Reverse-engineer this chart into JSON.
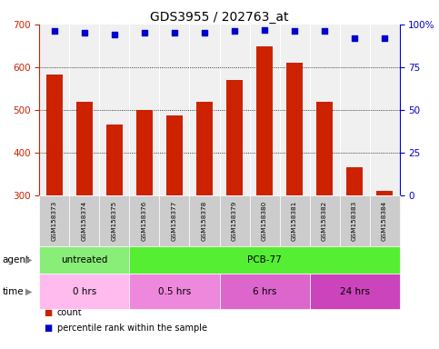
{
  "title": "GDS3955 / 202763_at",
  "samples": [
    "GSM158373",
    "GSM158374",
    "GSM158375",
    "GSM158376",
    "GSM158377",
    "GSM158378",
    "GSM158379",
    "GSM158380",
    "GSM158381",
    "GSM158382",
    "GSM158383",
    "GSM158384"
  ],
  "counts": [
    583,
    518,
    465,
    500,
    488,
    518,
    570,
    648,
    610,
    520,
    365,
    310
  ],
  "percentiles": [
    96,
    95,
    94,
    95,
    95,
    95,
    96,
    97,
    96,
    96,
    92,
    92
  ],
  "bar_color": "#cc2200",
  "dot_color": "#0000cc",
  "ylim_left": [
    300,
    700
  ],
  "ylim_right": [
    0,
    100
  ],
  "yticks_left": [
    300,
    400,
    500,
    600,
    700
  ],
  "yticks_right": [
    0,
    25,
    50,
    75,
    100
  ],
  "grid_values": [
    400,
    500,
    600
  ],
  "agent_groups": [
    {
      "label": "untreated",
      "start": 0,
      "end": 3,
      "color": "#88ee77"
    },
    {
      "label": "PCB-77",
      "start": 3,
      "end": 12,
      "color": "#55ee33"
    }
  ],
  "time_groups": [
    {
      "label": "0 hrs",
      "start": 0,
      "end": 3,
      "color": "#ffbbee"
    },
    {
      "label": "0.5 hrs",
      "start": 3,
      "end": 6,
      "color": "#ee88dd"
    },
    {
      "label": "6 hrs",
      "start": 6,
      "end": 9,
      "color": "#dd66cc"
    },
    {
      "label": "24 hrs",
      "start": 9,
      "end": 12,
      "color": "#cc44bb"
    }
  ],
  "legend_count_color": "#cc2200",
  "legend_percentile_color": "#0000cc",
  "title_fontsize": 10,
  "background_color": "#ffffff",
  "plot_bg_color": "#f0f0f0",
  "bar_width": 0.55
}
